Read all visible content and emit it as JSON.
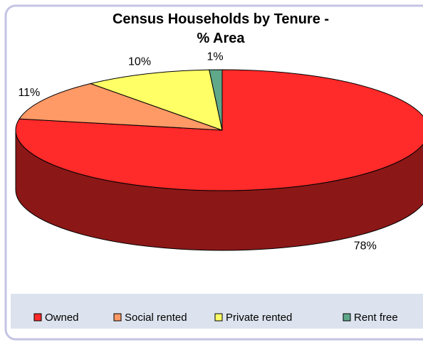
{
  "chart_data": {
    "type": "pie3d",
    "title": "Census Households by Tenure - % Area",
    "categories": [
      "Owned",
      "Social rented",
      "Private rented",
      "Rent free"
    ],
    "values": [
      78,
      11,
      10,
      1
    ],
    "value_labels": [
      "78%",
      "11%",
      "10%",
      "1%"
    ],
    "colors": [
      "#ff2a2a",
      "#ff9966",
      "#ffff66",
      "#5fa88a"
    ],
    "legend": "bottom"
  }
}
